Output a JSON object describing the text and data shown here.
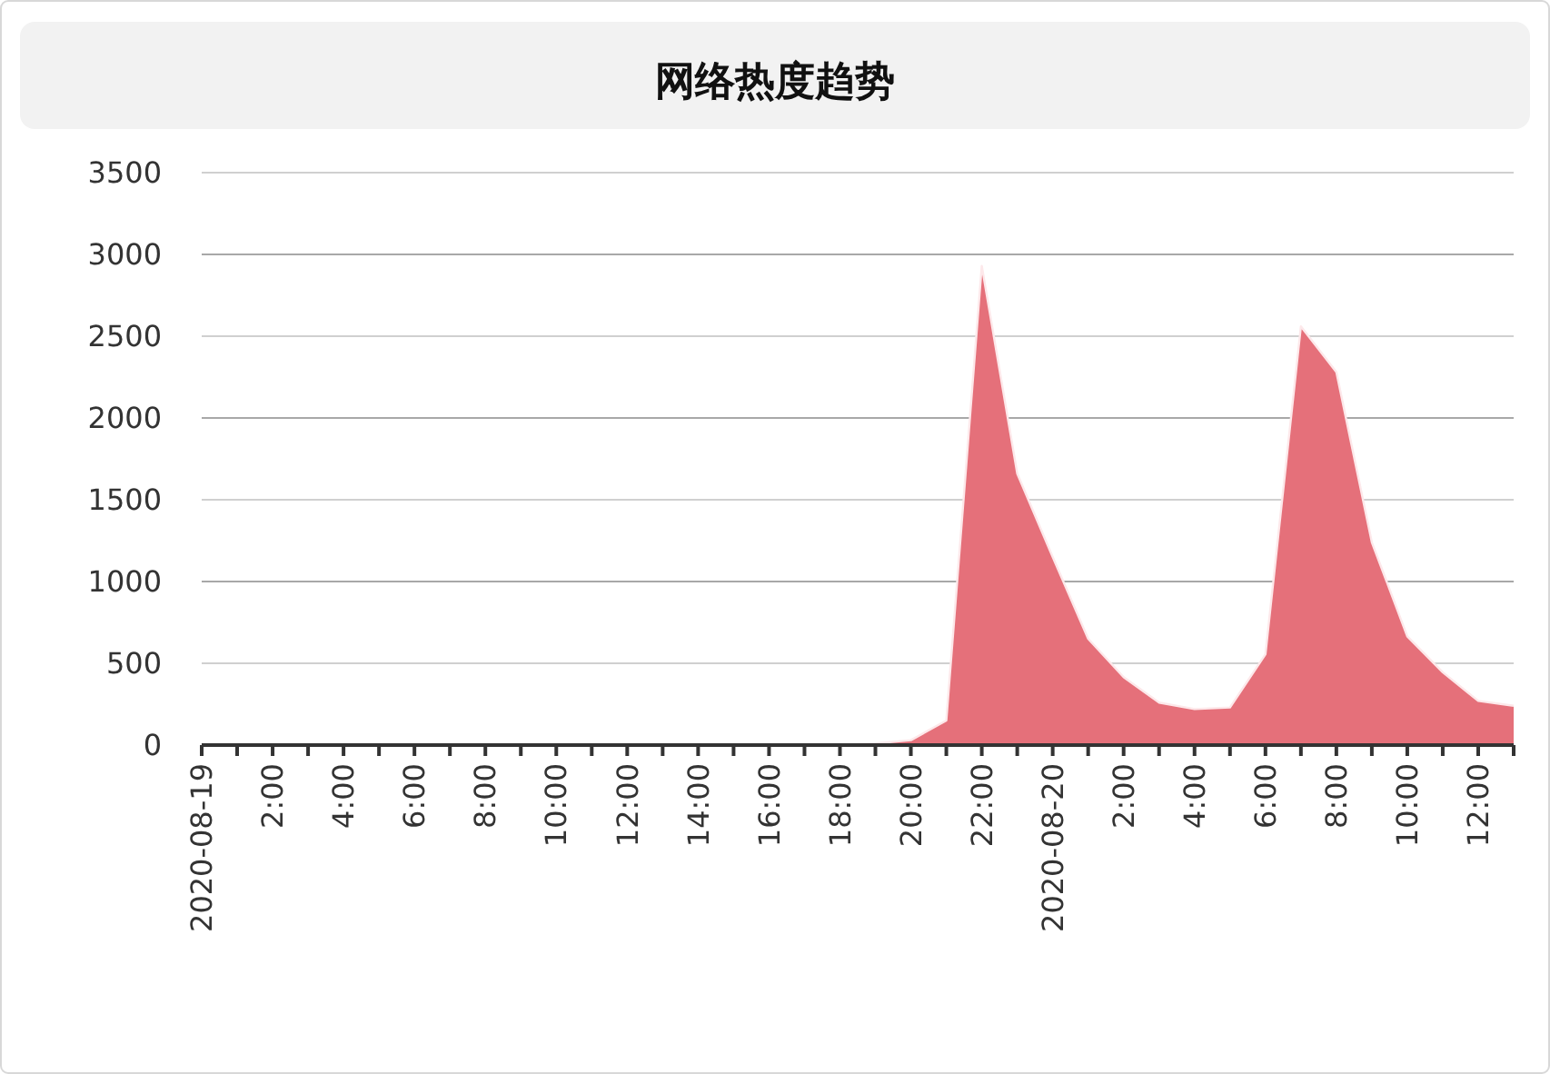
{
  "chart_data": {
    "type": "area",
    "title": "网络热度趋势",
    "x": [
      "2020-08-19T00:00",
      "2020-08-19T01:00",
      "2020-08-19T02:00",
      "2020-08-19T03:00",
      "2020-08-19T04:00",
      "2020-08-19T05:00",
      "2020-08-19T06:00",
      "2020-08-19T07:00",
      "2020-08-19T08:00",
      "2020-08-19T09:00",
      "2020-08-19T10:00",
      "2020-08-19T11:00",
      "2020-08-19T12:00",
      "2020-08-19T13:00",
      "2020-08-19T14:00",
      "2020-08-19T15:00",
      "2020-08-19T16:00",
      "2020-08-19T17:00",
      "2020-08-19T18:00",
      "2020-08-19T19:00",
      "2020-08-19T20:00",
      "2020-08-19T21:00",
      "2020-08-19T22:00",
      "2020-08-19T23:00",
      "2020-08-20T00:00",
      "2020-08-20T01:00",
      "2020-08-20T02:00",
      "2020-08-20T03:00",
      "2020-08-20T04:00",
      "2020-08-20T05:00",
      "2020-08-20T06:00",
      "2020-08-20T07:00",
      "2020-08-20T08:00",
      "2020-08-20T09:00",
      "2020-08-20T10:00",
      "2020-08-20T11:00",
      "2020-08-20T12:00",
      "2020-08-20T13:00"
    ],
    "series": [
      {
        "color": "#e5707a",
        "values": [
          0,
          0,
          0,
          0,
          0,
          0,
          0,
          0,
          0,
          0,
          0,
          0,
          0,
          0,
          0,
          0,
          0,
          0,
          0,
          10,
          30,
          150,
          2930,
          1660,
          1150,
          650,
          415,
          260,
          220,
          230,
          555,
          2560,
          2280,
          1240,
          665,
          445,
          270,
          240
        ]
      }
    ],
    "xlim": [
      "2020-08-19T00:00",
      "2020-08-20T13:00"
    ],
    "xticks": [
      {
        "value": "2020-08-19T00:00",
        "label": "2020-08-19"
      },
      {
        "value": "2020-08-19T01:00",
        "label": null
      },
      {
        "value": "2020-08-19T02:00",
        "label": "2:00"
      },
      {
        "value": "2020-08-19T03:00",
        "label": null
      },
      {
        "value": "2020-08-19T04:00",
        "label": "4:00"
      },
      {
        "value": "2020-08-19T05:00",
        "label": null
      },
      {
        "value": "2020-08-19T06:00",
        "label": "6:00"
      },
      {
        "value": "2020-08-19T07:00",
        "label": null
      },
      {
        "value": "2020-08-19T08:00",
        "label": "8:00"
      },
      {
        "value": "2020-08-19T09:00",
        "label": null
      },
      {
        "value": "2020-08-19T10:00",
        "label": "10:00"
      },
      {
        "value": "2020-08-19T11:00",
        "label": null
      },
      {
        "value": "2020-08-19T12:00",
        "label": "12:00"
      },
      {
        "value": "2020-08-19T13:00",
        "label": null
      },
      {
        "value": "2020-08-19T14:00",
        "label": "14:00"
      },
      {
        "value": "2020-08-19T15:00",
        "label": null
      },
      {
        "value": "2020-08-19T16:00",
        "label": "16:00"
      },
      {
        "value": "2020-08-19T17:00",
        "label": null
      },
      {
        "value": "2020-08-19T18:00",
        "label": "18:00"
      },
      {
        "value": "2020-08-19T19:00",
        "label": null
      },
      {
        "value": "2020-08-19T20:00",
        "label": "20:00"
      },
      {
        "value": "2020-08-19T21:00",
        "label": null
      },
      {
        "value": "2020-08-19T22:00",
        "label": "22:00"
      },
      {
        "value": "2020-08-19T23:00",
        "label": null
      },
      {
        "value": "2020-08-20T00:00",
        "label": "2020-08-20"
      },
      {
        "value": "2020-08-20T01:00",
        "label": null
      },
      {
        "value": "2020-08-20T02:00",
        "label": "2:00"
      },
      {
        "value": "2020-08-20T03:00",
        "label": null
      },
      {
        "value": "2020-08-20T04:00",
        "label": "4:00"
      },
      {
        "value": "2020-08-20T05:00",
        "label": null
      },
      {
        "value": "2020-08-20T06:00",
        "label": "6:00"
      },
      {
        "value": "2020-08-20T07:00",
        "label": null
      },
      {
        "value": "2020-08-20T08:00",
        "label": "8:00"
      },
      {
        "value": "2020-08-20T09:00",
        "label": null
      },
      {
        "value": "2020-08-20T10:00",
        "label": "10:00"
      },
      {
        "value": "2020-08-20T11:00",
        "label": null
      },
      {
        "value": "2020-08-20T12:00",
        "label": "12:00"
      },
      {
        "value": "2020-08-20T13:00",
        "label": null
      }
    ],
    "ylim": [
      0,
      3500
    ],
    "yticks": [
      0,
      500,
      1000,
      1500,
      2000,
      2500,
      3000,
      3500
    ],
    "grid": "y"
  }
}
